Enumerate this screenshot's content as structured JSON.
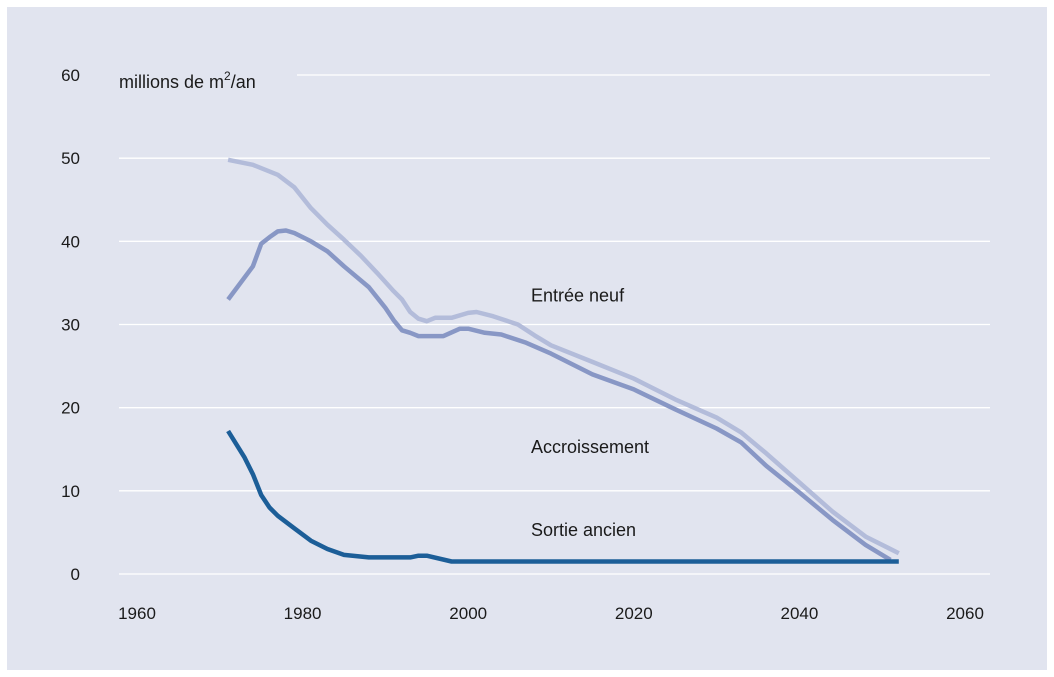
{
  "chart_data": {
    "type": "line",
    "title": "",
    "xlabel": "",
    "ylabel": "millions de m²/an",
    "ylabel_base": "millions de m",
    "ylabel_sup": "2",
    "ylabel_suffix": "/an",
    "xlim": [
      1960,
      2060
    ],
    "ylim": [
      0,
      60
    ],
    "x_ticks": [
      1960,
      1980,
      2000,
      2020,
      2040,
      2060
    ],
    "y_ticks": [
      0,
      10,
      20,
      30,
      40,
      50,
      60
    ],
    "grid": "horizontal",
    "series": [
      {
        "name": "Entrée neuf",
        "color": "#b3bcda",
        "points": [
          [
            1971,
            49.8
          ],
          [
            1974,
            49.2
          ],
          [
            1977,
            48
          ],
          [
            1979,
            46.5
          ],
          [
            1981,
            44
          ],
          [
            1983,
            42
          ],
          [
            1985,
            40.2
          ],
          [
            1987,
            38.3
          ],
          [
            1989,
            36.2
          ],
          [
            1991,
            34
          ],
          [
            1992,
            33
          ],
          [
            1993,
            31.5
          ],
          [
            1994,
            30.7
          ],
          [
            1995,
            30.4
          ],
          [
            1996,
            30.8
          ],
          [
            1998,
            30.8
          ],
          [
            2000,
            31.4
          ],
          [
            2001,
            31.5
          ],
          [
            2003,
            31
          ],
          [
            2006,
            30
          ],
          [
            2008,
            28.7
          ],
          [
            2010,
            27.5
          ],
          [
            2015,
            25.5
          ],
          [
            2020,
            23.5
          ],
          [
            2025,
            21
          ],
          [
            2030,
            18.8
          ],
          [
            2033,
            17
          ],
          [
            2036,
            14.5
          ],
          [
            2040,
            11
          ],
          [
            2044,
            7.5
          ],
          [
            2048,
            4.5
          ],
          [
            2052,
            2.5
          ]
        ]
      },
      {
        "name": "Accroissement",
        "color": "#8897c5",
        "points": [
          [
            1971,
            33
          ],
          [
            1974,
            37
          ],
          [
            1975,
            39.7
          ],
          [
            1976,
            40.5
          ],
          [
            1977,
            41.2
          ],
          [
            1978,
            41.3
          ],
          [
            1979,
            41
          ],
          [
            1981,
            40
          ],
          [
            1983,
            38.8
          ],
          [
            1985,
            37
          ],
          [
            1988,
            34.5
          ],
          [
            1990,
            32
          ],
          [
            1991,
            30.5
          ],
          [
            1992,
            29.3
          ],
          [
            1993,
            29
          ],
          [
            1994,
            28.6
          ],
          [
            1997,
            28.6
          ],
          [
            1999,
            29.5
          ],
          [
            2000,
            29.5
          ],
          [
            2002,
            29
          ],
          [
            2004,
            28.8
          ],
          [
            2007,
            27.8
          ],
          [
            2010,
            26.5
          ],
          [
            2015,
            24
          ],
          [
            2020,
            22.2
          ],
          [
            2025,
            19.8
          ],
          [
            2030,
            17.5
          ],
          [
            2033,
            15.8
          ],
          [
            2036,
            13
          ],
          [
            2040,
            9.8
          ],
          [
            2044,
            6.5
          ],
          [
            2048,
            3.5
          ],
          [
            2051,
            1.7
          ]
        ]
      },
      {
        "name": "Sortie ancien",
        "color": "#1c5e98",
        "points": [
          [
            1971,
            17.2
          ],
          [
            1973,
            14
          ],
          [
            1974,
            12
          ],
          [
            1975,
            9.5
          ],
          [
            1976,
            8
          ],
          [
            1977,
            7
          ],
          [
            1979,
            5.5
          ],
          [
            1981,
            4
          ],
          [
            1983,
            3
          ],
          [
            1985,
            2.3
          ],
          [
            1988,
            2
          ],
          [
            1993,
            2
          ],
          [
            1994,
            2.2
          ],
          [
            1995,
            2.2
          ],
          [
            1998,
            1.5
          ],
          [
            2052,
            1.5
          ]
        ]
      }
    ],
    "annotations": [
      {
        "text": "Entrée neuf",
        "x": 2015,
        "y": 33.5
      },
      {
        "text": "Accroissement",
        "x": 2015,
        "y": 15.3
      },
      {
        "text": "Sortie ancien",
        "x": 2015,
        "y": 5.3
      }
    ]
  }
}
